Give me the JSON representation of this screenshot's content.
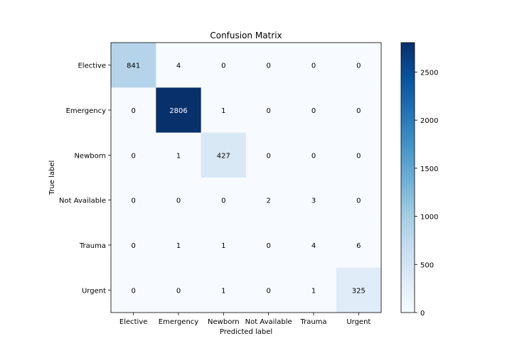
{
  "chart_data": {
    "type": "heatmap",
    "title": "Confusion Matrix",
    "xlabel": "Predicted label",
    "ylabel": "True label",
    "x_categories": [
      "Elective",
      "Emergency",
      "Newborn",
      "Not Available",
      "Trauma",
      "Urgent"
    ],
    "y_categories": [
      "Elective",
      "Emergency",
      "Newborn",
      "Not Available",
      "Trauma",
      "Urgent"
    ],
    "matrix": [
      [
        841,
        4,
        0,
        0,
        0,
        0
      ],
      [
        0,
        2806,
        1,
        0,
        0,
        0
      ],
      [
        0,
        1,
        427,
        0,
        0,
        0
      ],
      [
        0,
        0,
        0,
        2,
        3,
        0
      ],
      [
        0,
        1,
        1,
        0,
        4,
        6
      ],
      [
        0,
        0,
        1,
        0,
        1,
        325
      ]
    ],
    "colormap": "Blues",
    "colorbar": {
      "range": [
        0,
        2806
      ],
      "ticks": [
        0,
        500,
        1000,
        1500,
        2000,
        2500
      ]
    }
  }
}
